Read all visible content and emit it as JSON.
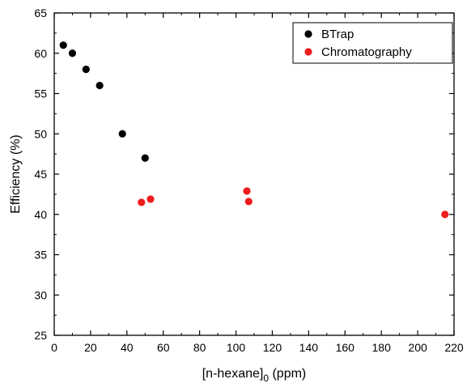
{
  "chart_data": {
    "type": "scatter",
    "xlabel": "[n-hexane]",
    "xlabel_subscript": "0",
    "xlabel_suffix": " (ppm)",
    "ylabel": "Efficiency (%)",
    "xlim": [
      0,
      220
    ],
    "ylim": [
      25,
      65
    ],
    "x_ticks": [
      0,
      20,
      40,
      60,
      80,
      100,
      120,
      140,
      160,
      180,
      200,
      220
    ],
    "y_ticks": [
      25,
      30,
      35,
      40,
      45,
      50,
      55,
      60,
      65
    ],
    "grid": false,
    "legend_position": "top-right",
    "series": [
      {
        "name": "BTrap",
        "color": "#000000",
        "points": [
          {
            "x": 5,
            "y": 61
          },
          {
            "x": 10,
            "y": 60
          },
          {
            "x": 17.5,
            "y": 58
          },
          {
            "x": 25,
            "y": 56
          },
          {
            "x": 37.5,
            "y": 50
          },
          {
            "x": 50,
            "y": 47
          }
        ]
      },
      {
        "name": "Chromatography",
        "color": "#ee1c1c",
        "points": [
          {
            "x": 48,
            "y": 41.5
          },
          {
            "x": 53,
            "y": 41.9
          },
          {
            "x": 106,
            "y": 42.9
          },
          {
            "x": 107,
            "y": 41.6
          },
          {
            "x": 215,
            "y": 40
          }
        ]
      }
    ]
  }
}
